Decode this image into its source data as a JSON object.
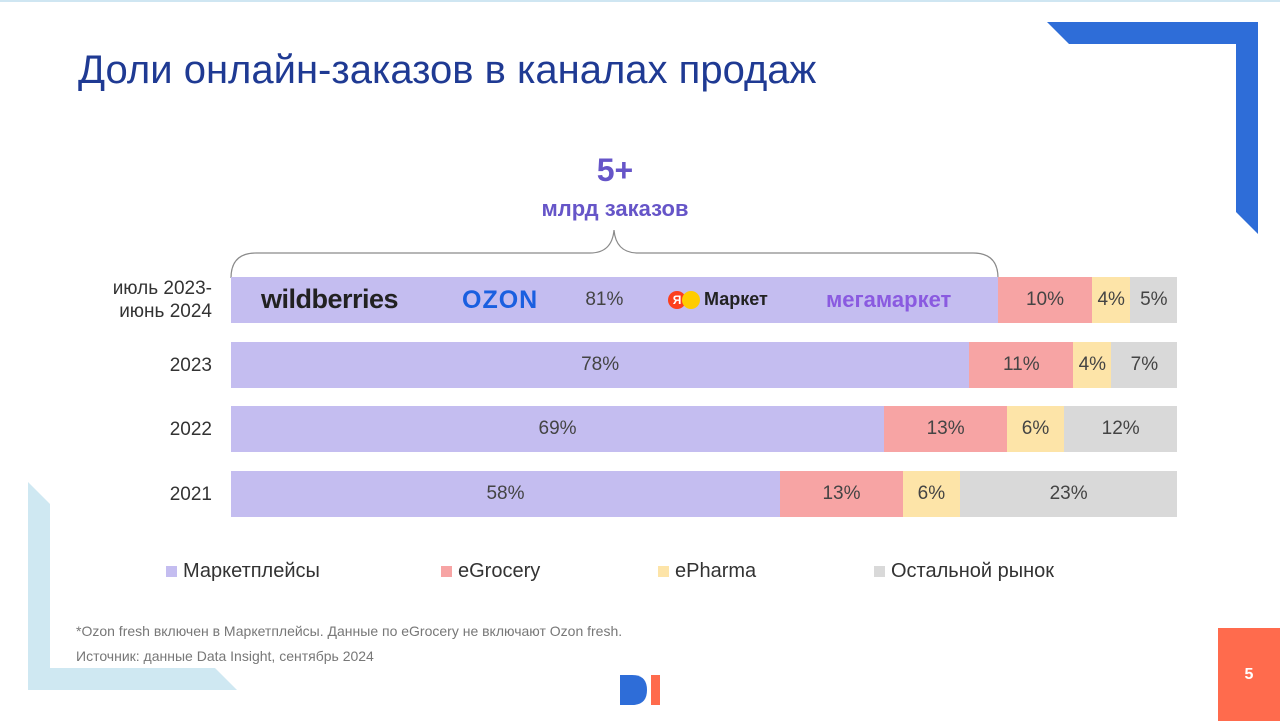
{
  "slide": {
    "title": "Доли онлайн-заказов в каналах продаж",
    "page_number": "5"
  },
  "callout": {
    "value": "5+",
    "text": "млрд заказов"
  },
  "logos": [
    "wildberries",
    "OZON",
    "Маркет",
    "мегамаркет"
  ],
  "legend": [
    {
      "label": "Маркетплейсы",
      "color": "#c4bdf0"
    },
    {
      "label": "eGrocery",
      "color": "#f7a4a4"
    },
    {
      "label": "ePharma",
      "color": "#fde4a8"
    },
    {
      "label": "Остальной рынок",
      "color": "#d9d9d9"
    }
  ],
  "notes": {
    "footnote": "*Ozon fresh включен в Маркетплейсы. Данные по eGrocery не включают Ozon fresh.",
    "source": "Источник: данные Data Insight, сентябрь 2024"
  },
  "chart_data": {
    "type": "bar",
    "orientation": "horizontal",
    "stacked": true,
    "categories": [
      "июль 2023-\nиюнь 2024",
      "2023",
      "2022",
      "2021"
    ],
    "series": [
      {
        "name": "Маркетплейсы",
        "values": [
          81,
          78,
          69,
          58
        ],
        "labels": [
          "81%",
          "78%",
          "69%",
          "58%"
        ],
        "color": "#c4bdf0"
      },
      {
        "name": "eGrocery",
        "values": [
          10,
          11,
          13,
          13
        ],
        "labels": [
          "10%",
          "11%",
          "13%",
          "13%"
        ],
        "color": "#f7a4a4"
      },
      {
        "name": "ePharma",
        "values": [
          4,
          4,
          6,
          6
        ],
        "labels": [
          "4%",
          "4%",
          "6%",
          "6%"
        ],
        "color": "#fde4a8"
      },
      {
        "name": "Остальной рынок",
        "values": [
          5,
          7,
          12,
          23
        ],
        "labels": [
          "5%",
          "7%",
          "12%",
          "23%"
        ],
        "color": "#d9d9d9"
      }
    ],
    "xlim": [
      0,
      100
    ],
    "legend_position": "bottom"
  }
}
